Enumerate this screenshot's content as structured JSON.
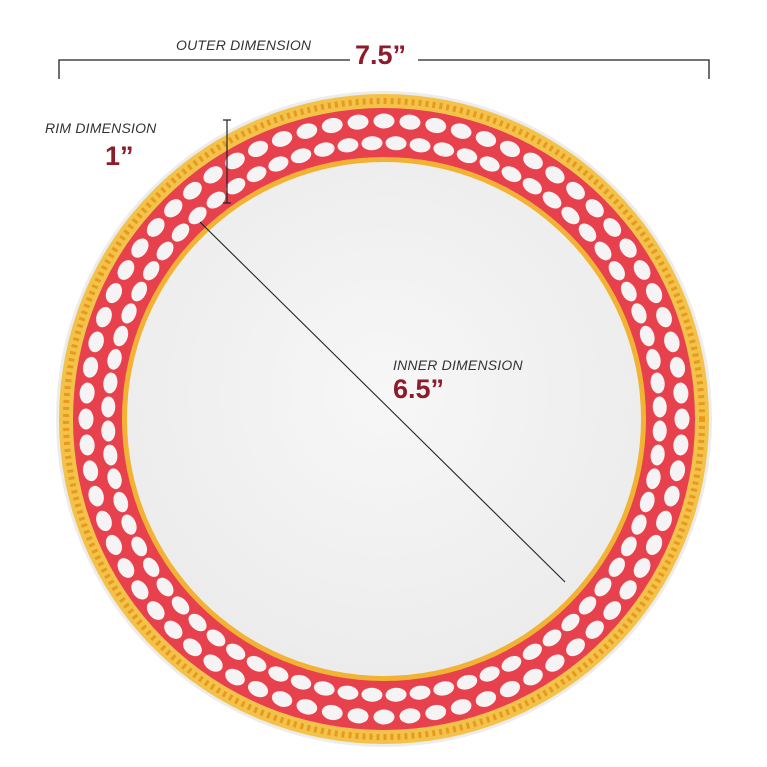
{
  "outer": {
    "label": "OUTER DIMENSION",
    "value": "7.5”"
  },
  "rim": {
    "label": "RIM DIMENSION",
    "value": "1”"
  },
  "inner": {
    "label": "INNER DIMENSION",
    "value": "6.5”"
  },
  "colors": {
    "accent_text": "#8e1a2a",
    "gold": "#f2b233",
    "red_pattern": "#e8414e",
    "plate": "#f4f4f4"
  }
}
